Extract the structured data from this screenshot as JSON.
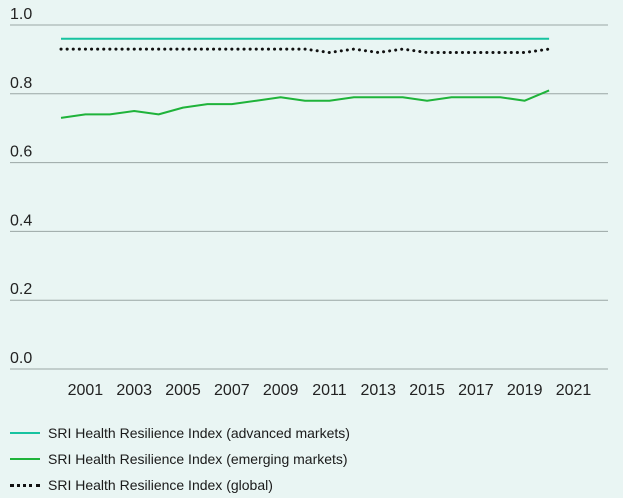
{
  "colors": {
    "background": "#e9f5f3",
    "grid": "#9aa6a4",
    "advanced": "#17c3a0",
    "emerging": "#1fb33a",
    "global": "#111111"
  },
  "chart_data": {
    "type": "line",
    "title": "",
    "xlabel": "",
    "ylabel": "",
    "xlim": [
      2000,
      2022
    ],
    "ylim": [
      0,
      1.0
    ],
    "y_ticks": [
      0.0,
      0.2,
      0.4,
      0.6,
      0.8,
      1.0
    ],
    "y_tick_labels": [
      "0.0",
      "0.2",
      "0.4",
      "0.6",
      "0.8",
      "1.0"
    ],
    "x_ticks": [
      2001,
      2003,
      2005,
      2007,
      2009,
      2011,
      2013,
      2015,
      2017,
      2019,
      2021
    ],
    "x_tick_labels": [
      "2001",
      "2003",
      "2005",
      "2007",
      "2009",
      "2011",
      "2013",
      "2015",
      "2017",
      "2019",
      "2021"
    ],
    "grid": "horizontal",
    "legend_position": "bottom",
    "x": [
      2000,
      2001,
      2002,
      2003,
      2004,
      2005,
      2006,
      2007,
      2008,
      2009,
      2010,
      2011,
      2012,
      2013,
      2014,
      2015,
      2016,
      2017,
      2018,
      2019,
      2020
    ],
    "series": [
      {
        "name": "SRI Health Resilience Index (advanced markets)",
        "style": "solid",
        "color": "#17c3a0",
        "values": [
          0.96,
          0.96,
          0.96,
          0.96,
          0.96,
          0.96,
          0.96,
          0.96,
          0.96,
          0.96,
          0.96,
          0.96,
          0.96,
          0.96,
          0.96,
          0.96,
          0.96,
          0.96,
          0.96,
          0.96,
          0.96
        ]
      },
      {
        "name": "SRI Health Resilience Index (emerging markets)",
        "style": "solid",
        "color": "#1fb33a",
        "values": [
          0.73,
          0.74,
          0.74,
          0.75,
          0.74,
          0.76,
          0.77,
          0.77,
          0.78,
          0.79,
          0.78,
          0.78,
          0.79,
          0.79,
          0.79,
          0.78,
          0.79,
          0.79,
          0.79,
          0.78,
          0.81
        ]
      },
      {
        "name": "SRI Health Resilience Index (global)",
        "style": "dotted",
        "color": "#111111",
        "values": [
          0.93,
          0.93,
          0.93,
          0.93,
          0.93,
          0.93,
          0.93,
          0.93,
          0.93,
          0.93,
          0.93,
          0.92,
          0.93,
          0.92,
          0.93,
          0.92,
          0.92,
          0.92,
          0.92,
          0.92,
          0.93
        ]
      }
    ]
  },
  "legend": {
    "items": [
      {
        "label": "SRI Health Resilience Index (advanced markets)"
      },
      {
        "label": "SRI Health Resilience Index (emerging markets)"
      },
      {
        "label": "SRI Health Resilience Index (global)"
      }
    ]
  }
}
